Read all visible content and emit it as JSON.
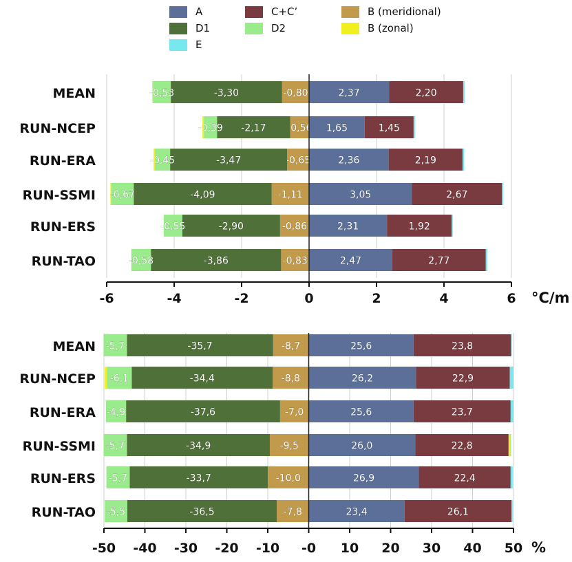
{
  "colors": {
    "A": "#5b6f98",
    "C+C'": "#7a3b40",
    "B (meridional)": "#c19b4b",
    "D1": "#50703a",
    "D2": "#9aeb8c",
    "B (zonal)": "#f2ef1e",
    "E": "#78e8ef"
  },
  "legend": [
    {
      "key": "A",
      "label": "A"
    },
    {
      "key": "C+C'",
      "label": "C+C’"
    },
    {
      "key": "B (meridional)",
      "label": "B (meridional)"
    },
    {
      "key": "D1",
      "label": "D1"
    },
    {
      "key": "D2",
      "label": "D2"
    },
    {
      "key": "B (zonal)",
      "label": "B (zonal)"
    },
    {
      "key": "E",
      "label": "E"
    }
  ],
  "chart_data": [
    {
      "type": "bar",
      "orientation": "horizontal",
      "stacked": true,
      "unit": "°C/m",
      "xlim": [
        -6,
        6
      ],
      "xticks": [
        -6,
        -4,
        -2,
        0,
        2,
        4,
        6
      ],
      "xtick_labels": [
        "-6",
        "-4",
        "-2",
        "0",
        "2",
        "4",
        "6"
      ],
      "categories": [
        "MEAN",
        "RUN-NCEP",
        "RUN-ERA",
        "RUN-SSMI",
        "RUN-ERS",
        "RUN-TAO"
      ],
      "series": [
        {
          "key": "B (meridional)",
          "labels": [
            "-0,80",
            "-0,56",
            "-0,65",
            "-1,11",
            "-0,86",
            "-0,83"
          ],
          "values": [
            -0.8,
            -0.56,
            -0.65,
            -1.11,
            -0.86,
            -0.83
          ]
        },
        {
          "key": "D1",
          "labels": [
            "-3,30",
            "-2,17",
            "-3,47",
            "-4,09",
            "-2,90",
            "-3,86"
          ],
          "values": [
            -3.3,
            -2.17,
            -3.47,
            -4.09,
            -2.9,
            -3.86
          ]
        },
        {
          "key": "D2",
          "labels": [
            "-0,53",
            "-0,39",
            "-0,45",
            "-0,67",
            "-0,55",
            "-0,58"
          ],
          "values": [
            -0.53,
            -0.39,
            -0.45,
            -0.67,
            -0.55,
            -0.58
          ]
        },
        {
          "key": "B (zonal)",
          "labels": [
            "",
            "",
            "",
            "",
            "",
            ""
          ],
          "values": [
            -0.02,
            -0.04,
            -0.04,
            -0.02,
            0,
            0
          ]
        },
        {
          "key": "A",
          "labels": [
            "2,37",
            "1,65",
            "2,36",
            "3,05",
            "2,31",
            "2,47"
          ],
          "values": [
            2.37,
            1.65,
            2.36,
            3.05,
            2.31,
            2.47
          ]
        },
        {
          "key": "C+C'",
          "labels": [
            "2,20",
            "1,45",
            "2,19",
            "2,67",
            "1,92",
            "2,77"
          ],
          "values": [
            2.2,
            1.45,
            2.19,
            2.67,
            1.92,
            2.77
          ]
        },
        {
          "key": "E",
          "labels": [
            "",
            "",
            "",
            "",
            "",
            ""
          ],
          "values": [
            0.04,
            0.04,
            0.05,
            0.04,
            0.03,
            0.05
          ]
        }
      ]
    },
    {
      "type": "bar",
      "orientation": "horizontal",
      "stacked": true,
      "unit": "%",
      "xlim": [
        -50,
        50
      ],
      "xticks": [
        -50,
        -40,
        -30,
        -20,
        -10,
        0,
        10,
        20,
        30,
        40,
        50
      ],
      "xtick_labels": [
        "-50",
        "-40",
        "-30",
        "-20",
        "-10",
        "-0",
        "10",
        "20",
        "30",
        "40",
        "50"
      ],
      "categories": [
        "MEAN",
        "RUN-NCEP",
        "RUN-ERA",
        "RUN-SSMI",
        "RUN-ERS",
        "RUN-TAO"
      ],
      "series": [
        {
          "key": "B (meridional)",
          "labels": [
            "-8,7",
            "-8,8",
            "-7,0",
            "-9,5",
            "-10,0",
            "-7,8"
          ],
          "values": [
            -8.7,
            -8.8,
            -7.0,
            -9.5,
            -10.0,
            -7.8
          ]
        },
        {
          "key": "D1",
          "labels": [
            "-35,7",
            "-34,4",
            "-37,6",
            "-34,9",
            "-33,7",
            "-36,5"
          ],
          "values": [
            -35.7,
            -34.4,
            -37.6,
            -34.9,
            -33.7,
            -36.5
          ]
        },
        {
          "key": "D2",
          "labels": [
            "-5,7",
            "-6,1",
            "-4,9",
            "-5,7",
            "-5,7",
            "-5,5"
          ],
          "values": [
            -5.7,
            -6.1,
            -4.9,
            -5.7,
            -5.7,
            -5.5
          ]
        },
        {
          "key": "B (zonal)",
          "labels": [
            "",
            "",
            "",
            "",
            "",
            ""
          ],
          "values": [
            0,
            -0.5,
            0,
            0,
            0,
            0
          ]
        },
        {
          "key": "A",
          "labels": [
            "25,6",
            "26,2",
            "25,6",
            "26,0",
            "26,9",
            "23,4"
          ],
          "values": [
            25.6,
            26.2,
            25.6,
            26.0,
            26.9,
            23.4
          ]
        },
        {
          "key": "C+C'",
          "labels": [
            "23,8",
            "22,9",
            "23,7",
            "22,8",
            "22,4",
            "26,1"
          ],
          "values": [
            23.8,
            22.9,
            23.7,
            22.8,
            22.4,
            26.1
          ]
        },
        {
          "key": "B (zonal)",
          "labels": [
            "",
            "",
            "",
            "",
            "",
            ""
          ],
          "values": [
            0,
            0,
            0,
            0.4,
            0,
            0
          ]
        },
        {
          "key": "E",
          "labels": [
            "",
            "",
            "",
            "",
            "",
            ""
          ],
          "values": [
            0.2,
            0.9,
            0.7,
            0.2,
            0.5,
            0.3
          ]
        }
      ]
    }
  ]
}
